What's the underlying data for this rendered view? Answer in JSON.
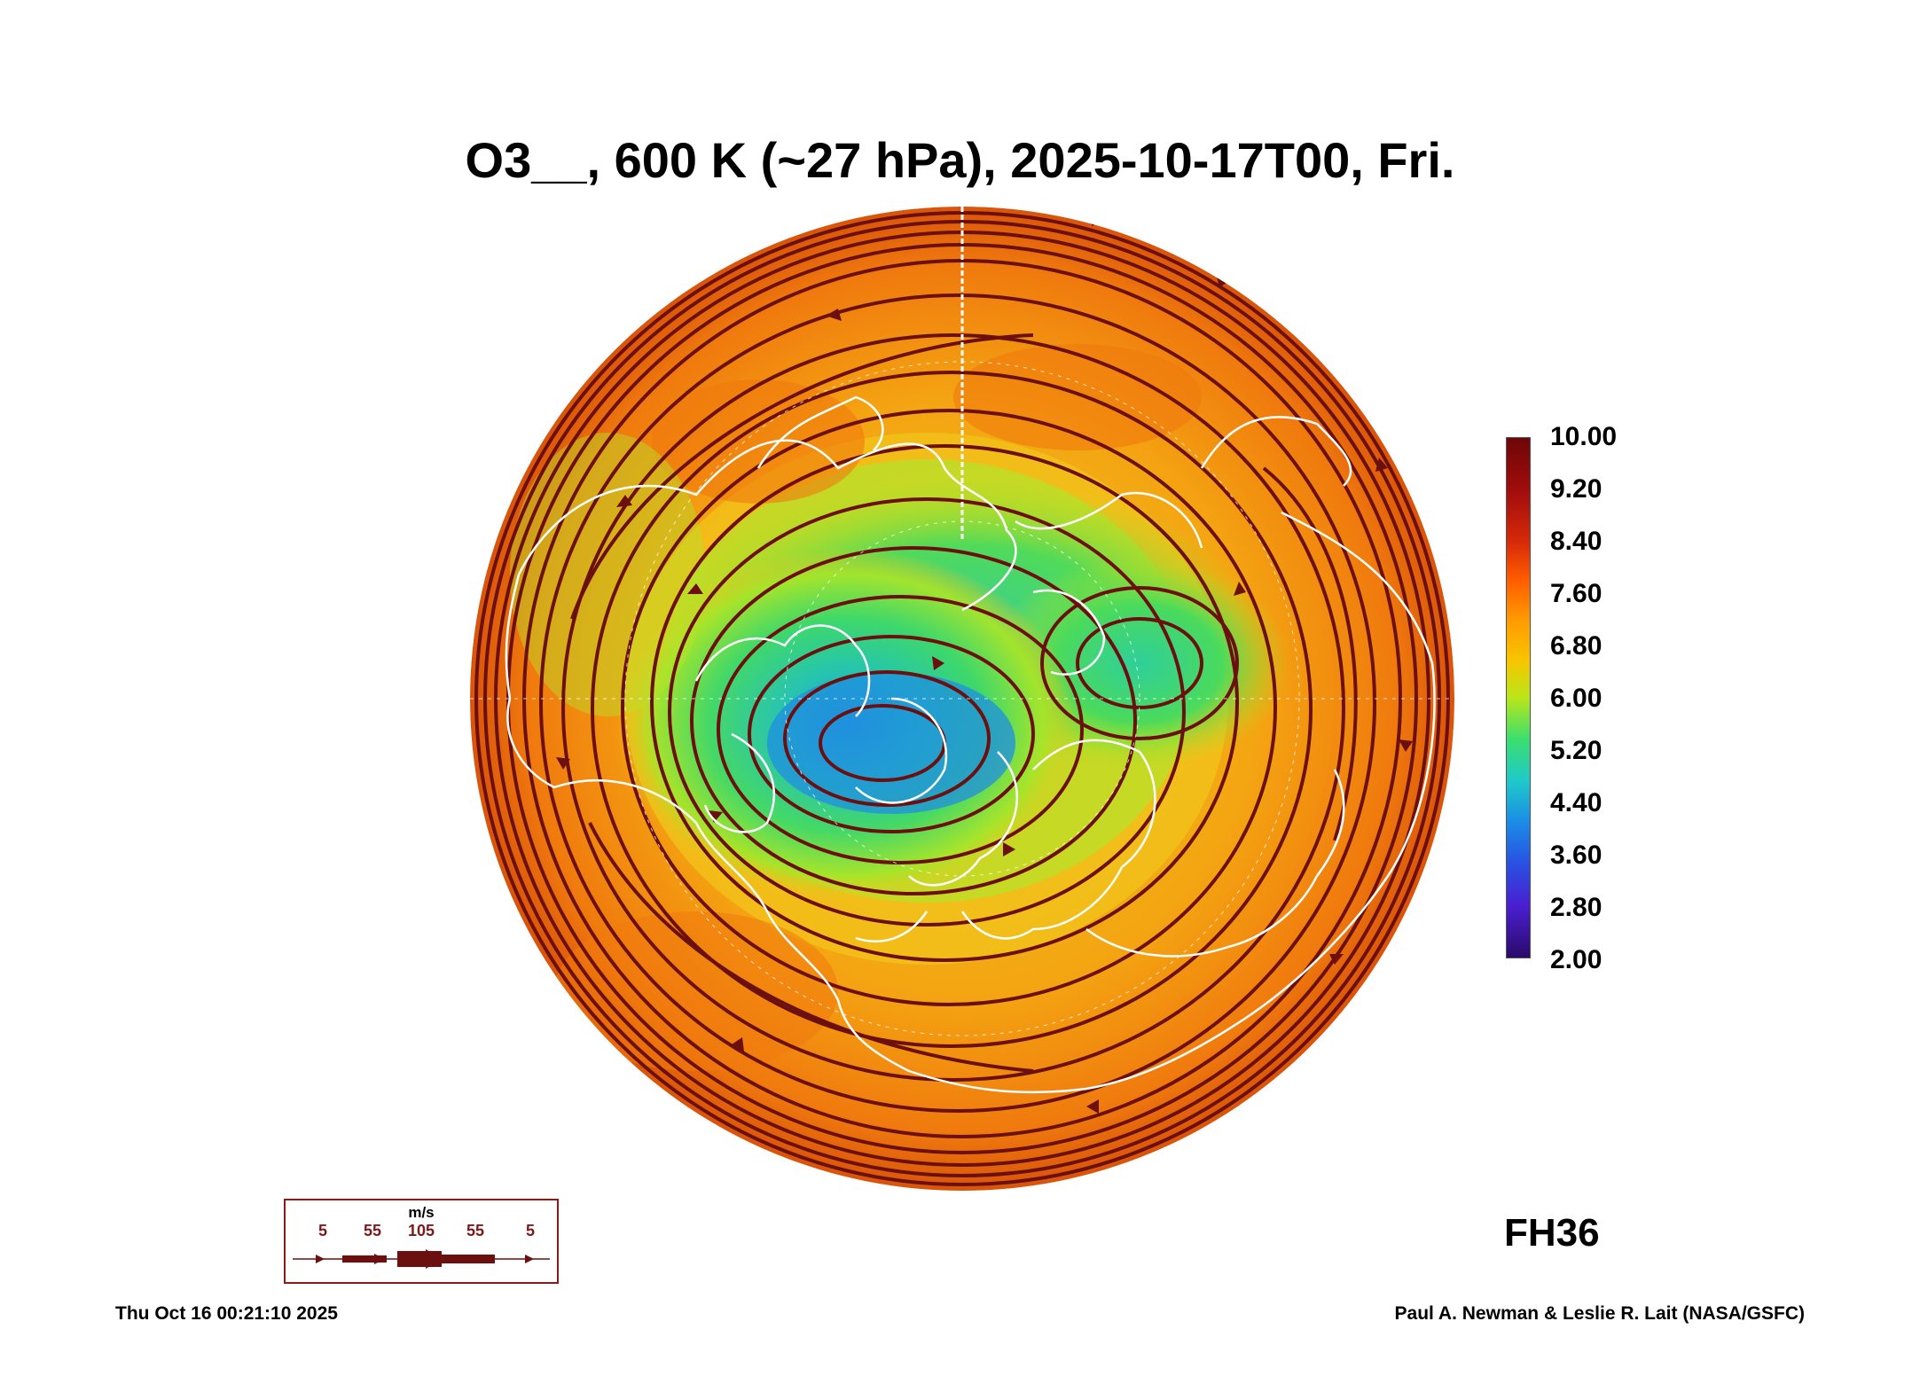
{
  "title": "O3__, 600 K (~27 hPa), 2025-10-17T00, Fri.",
  "forecast_hour": "FH36",
  "timestamp": "Thu Oct 16 00:21:10 2025",
  "credit": "Paul A. Newman & Leslie R. Lait (NASA/GSFC)",
  "colorbar": {
    "labels": [
      "10.00",
      "9.20",
      "8.40",
      "7.60",
      "6.80",
      "6.00",
      "5.20",
      "4.40",
      "3.60",
      "2.80",
      "2.00"
    ],
    "min": 2.0,
    "max": 10.0,
    "colors": [
      "#2a0a6a",
      "#1b8ce6",
      "#3bdf6f",
      "#f7c600",
      "#ff5a00",
      "#6e0707"
    ]
  },
  "wind_legend": {
    "unit": "m/s",
    "values": [
      "5",
      "55",
      "105",
      "55",
      "5"
    ]
  },
  "map": {
    "projection": "north polar stereographic",
    "field": "ozone mixing ratio",
    "colors": {
      "ocean_high": "#f48a10",
      "mid": "#f2c21a",
      "low": "#3ed86a",
      "min": "#1f8fe0",
      "streamline": "#6b0f0f",
      "coastline": "#ffffff"
    }
  }
}
